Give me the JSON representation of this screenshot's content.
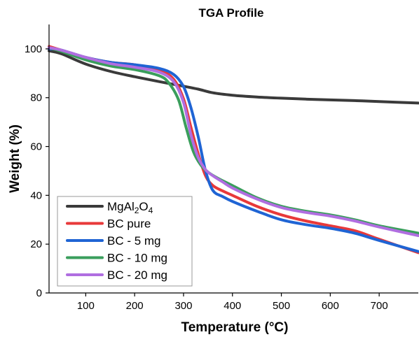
{
  "chart_data": {
    "type": "line",
    "title": "TGA Profile",
    "xlabel": "Temperature (°C)",
    "ylabel": "Weight (%)",
    "xlim": [
      25,
      780
    ],
    "ylim": [
      0,
      110
    ],
    "xticks": [
      100,
      200,
      300,
      400,
      500,
      600,
      700
    ],
    "yticks": [
      0,
      20,
      40,
      60,
      80,
      100
    ],
    "grid": false,
    "legend_position": "bottom-left",
    "series": [
      {
        "name": "MgAl2O4",
        "name_parts": {
          "base": "MgAl",
          "sub1": "2",
          "mid": "O",
          "sub2": "4"
        },
        "color": "#3a3a3a",
        "x": [
          25,
          50,
          100,
          150,
          200,
          250,
          300,
          330,
          360,
          400,
          450,
          500,
          550,
          600,
          650,
          700,
          780
        ],
        "y": [
          99.2,
          98.0,
          93.8,
          90.8,
          88.6,
          86.6,
          84.7,
          83.5,
          82.0,
          81.0,
          80.3,
          79.8,
          79.4,
          79.1,
          78.8,
          78.4,
          77.8
        ]
      },
      {
        "name": "BC pure",
        "color": "#e8393a",
        "x": [
          25,
          50,
          100,
          150,
          200,
          250,
          280,
          300,
          315,
          330,
          345,
          360,
          380,
          400,
          450,
          500,
          550,
          600,
          650,
          700,
          780
        ],
        "y": [
          101.0,
          99.5,
          96.5,
          94.5,
          93.5,
          91.5,
          87.5,
          79.5,
          68.0,
          57.0,
          48.0,
          44.0,
          41.8,
          40.0,
          35.5,
          32.0,
          29.5,
          27.5,
          25.5,
          22.0,
          16.5
        ]
      },
      {
        "name": "BC - 5 mg",
        "color": "#1f64d4",
        "x": [
          25,
          50,
          100,
          150,
          200,
          250,
          280,
          300,
          315,
          330,
          345,
          360,
          380,
          400,
          450,
          500,
          550,
          600,
          650,
          700,
          780
        ],
        "y": [
          100.0,
          99.5,
          96.5,
          94.5,
          93.5,
          92.0,
          89.5,
          84.5,
          76.0,
          64.0,
          50.0,
          42.0,
          39.5,
          37.5,
          33.5,
          30.0,
          28.0,
          26.5,
          24.5,
          21.5,
          17.0
        ]
      },
      {
        "name": "BC - 10 mg",
        "color": "#3a9e5c",
        "x": [
          25,
          50,
          100,
          150,
          200,
          250,
          270,
          290,
          305,
          320,
          335,
          350,
          370,
          400,
          450,
          500,
          550,
          600,
          650,
          700,
          780
        ],
        "y": [
          100.5,
          99.0,
          95.5,
          93.0,
          91.5,
          89.0,
          86.0,
          79.0,
          68.0,
          58.0,
          52.5,
          49.5,
          47.0,
          44.0,
          39.0,
          35.5,
          33.5,
          32.0,
          30.0,
          27.5,
          24.5
        ]
      },
      {
        "name": "BC - 20 mg",
        "color": "#b06ee0",
        "x": [
          25,
          50,
          100,
          150,
          200,
          250,
          280,
          300,
          315,
          330,
          345,
          360,
          380,
          400,
          450,
          500,
          550,
          600,
          650,
          700,
          780
        ],
        "y": [
          100.5,
          99.5,
          96.5,
          94.0,
          92.5,
          90.5,
          86.5,
          78.0,
          65.0,
          55.5,
          50.5,
          48.0,
          45.5,
          43.0,
          38.5,
          35.0,
          33.0,
          31.5,
          29.5,
          27.0,
          23.5
        ]
      }
    ]
  }
}
